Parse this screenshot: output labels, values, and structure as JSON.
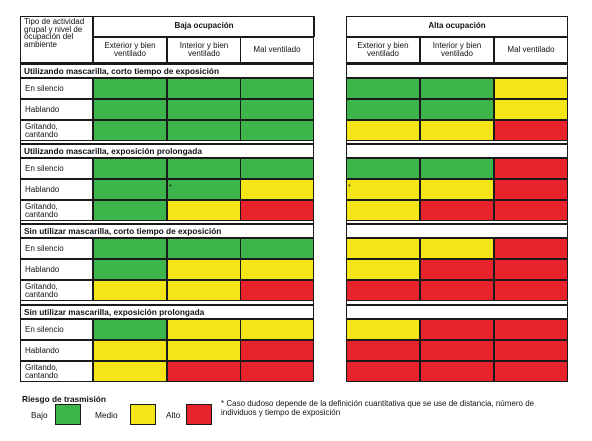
{
  "colors": {
    "bajo": "#3cb54a",
    "medio": "#f4e517",
    "alto": "#e8232b"
  },
  "header": {
    "corner_label": "Tipo de actividad grupal y nivel de ocupación del ambiente",
    "groups": [
      {
        "title": "Baja ocupación",
        "columns": [
          "Exterior y bien ventilado",
          "Interior y bien ventilado",
          "Mal ventilado"
        ]
      },
      {
        "title": "Alta ocupación",
        "columns": [
          "Exterior y bien ventilado",
          "Interior y bien ventilado",
          "Mal ventilado"
        ]
      }
    ]
  },
  "sections": [
    {
      "title": "Utilizando mascarilla, corto tiempo de exposición",
      "rows": [
        {
          "label": "En silencio",
          "baja": [
            "bajo",
            "bajo",
            "bajo"
          ],
          "alta": [
            "bajo",
            "bajo",
            "medio"
          ]
        },
        {
          "label": "Hablando",
          "baja": [
            "bajo",
            "bajo",
            "bajo"
          ],
          "alta": [
            "bajo",
            "bajo",
            "medio"
          ]
        },
        {
          "label": "Gritando, cantando",
          "baja": [
            "bajo",
            "bajo",
            "bajo"
          ],
          "alta": [
            "medio",
            "medio",
            "alto"
          ]
        }
      ]
    },
    {
      "title": "Utilizando mascarilla, exposición prolongada",
      "rows": [
        {
          "label": "En silencio",
          "baja": [
            "bajo",
            "bajo",
            "bajo"
          ],
          "alta": [
            "bajo",
            "bajo",
            "alto"
          ]
        },
        {
          "label": "Hablando",
          "baja": [
            "bajo",
            "bajo",
            "medio"
          ],
          "alta": [
            "medio",
            "medio",
            "alto"
          ]
        },
        {
          "label": "Gritando, cantando",
          "baja": [
            "bajo",
            "medio",
            "alto"
          ],
          "alta": [
            "medio",
            "alto",
            "alto"
          ]
        }
      ]
    },
    {
      "title": "Sin utilizar mascarilla, corto tiempo de exposición",
      "rows": [
        {
          "label": "En silencio",
          "baja": [
            "bajo",
            "bajo",
            "bajo"
          ],
          "alta": [
            "medio",
            "medio",
            "alto"
          ]
        },
        {
          "label": "Hablando",
          "baja": [
            "bajo",
            "medio",
            "medio"
          ],
          "alta": [
            "medio",
            "alto",
            "alto"
          ]
        },
        {
          "label": "Gritando, cantando",
          "baja": [
            "medio",
            "medio",
            "alto"
          ],
          "alta": [
            "alto",
            "alto",
            "alto"
          ]
        }
      ]
    },
    {
      "title": "Sin utilizar mascarilla, exposición prolongada",
      "rows": [
        {
          "label": "En silencio",
          "baja": [
            "bajo",
            "medio",
            "medio"
          ],
          "alta": [
            "medio",
            "alto",
            "alto"
          ]
        },
        {
          "label": "Hablando",
          "baja": [
            "medio",
            "medio",
            "alto"
          ],
          "alta": [
            "alto",
            "alto",
            "alto"
          ]
        },
        {
          "label": "Gritando, cantando",
          "baja": [
            "medio",
            "alto",
            "alto"
          ],
          "alta": [
            "alto",
            "alto",
            "alto"
          ]
        }
      ]
    }
  ],
  "dubious_marks": [
    {
      "section": 1,
      "row": 1,
      "group": "baja",
      "col": 1,
      "symbol": "*"
    },
    {
      "section": 1,
      "row": 1,
      "group": "alta",
      "col": 0,
      "symbol": "*"
    }
  ],
  "legend": {
    "title": "Riesgo de trasmisión",
    "items": [
      {
        "label": "Bajo",
        "level": "bajo"
      },
      {
        "label": "Medio",
        "level": "medio"
      },
      {
        "label": "Alto",
        "level": "alto"
      }
    ],
    "note": "* Caso dudoso depende de la definición cuantitativa que se use de distancia, número de individuos y tiempo de exposición"
  }
}
